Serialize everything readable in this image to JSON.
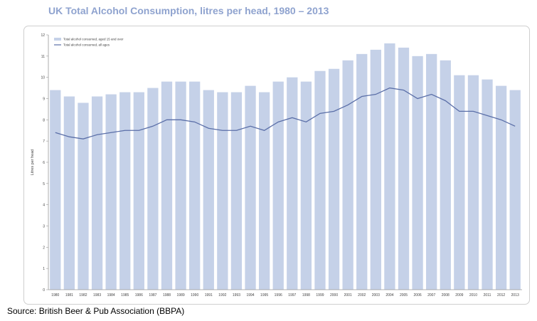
{
  "title": "UK Total Alcohol Consumption, litres per head, 1980 – 2013",
  "source": "Source: British Beer & Pub Association (BBPA)",
  "colors": {
    "bar": "#c5d1e8",
    "line": "#5b6fa8",
    "title": "#8fa3cf",
    "axis": "#999999"
  },
  "chart_data": {
    "type": "bar",
    "grid": false,
    "legend_position": "top-left",
    "ylabel": "Litres per head",
    "xlabel": "",
    "ylim": [
      0,
      12
    ],
    "yticks": [
      "0",
      "1",
      "2",
      "3",
      "4",
      "5",
      "6",
      "7",
      "8",
      "9",
      "10",
      "11",
      "12"
    ],
    "categories": [
      "1980",
      "1981",
      "1982",
      "1983",
      "1984",
      "1985",
      "1986",
      "1987",
      "1988",
      "1989",
      "1990",
      "1991",
      "1992",
      "1993",
      "1994",
      "1995",
      "1996",
      "1997",
      "1998",
      "1999",
      "2000",
      "2001",
      "2002",
      "2003",
      "2004",
      "2005",
      "2006",
      "2007",
      "2008",
      "2009",
      "2010",
      "2011",
      "2012",
      "2013"
    ],
    "series": [
      {
        "name": "Total alcohol consumed, aged 15 and over",
        "type": "bar",
        "values": [
          9.4,
          9.1,
          8.8,
          9.1,
          9.2,
          9.3,
          9.3,
          9.5,
          9.8,
          9.8,
          9.8,
          9.4,
          9.3,
          9.3,
          9.6,
          9.3,
          9.8,
          10.0,
          9.8,
          10.3,
          10.4,
          10.8,
          11.1,
          11.3,
          11.6,
          11.4,
          11.0,
          11.1,
          10.8,
          10.1,
          10.1,
          9.9,
          9.6,
          9.4
        ]
      },
      {
        "name": "Total alcohol consumed, all ages",
        "type": "line",
        "values": [
          7.4,
          7.2,
          7.1,
          7.3,
          7.4,
          7.5,
          7.5,
          7.7,
          8.0,
          8.0,
          7.9,
          7.6,
          7.5,
          7.5,
          7.7,
          7.5,
          7.9,
          8.1,
          7.9,
          8.3,
          8.4,
          8.7,
          9.1,
          9.2,
          9.5,
          9.4,
          9.0,
          9.2,
          8.9,
          8.4,
          8.4,
          8.2,
          8.0,
          7.7
        ]
      }
    ]
  }
}
